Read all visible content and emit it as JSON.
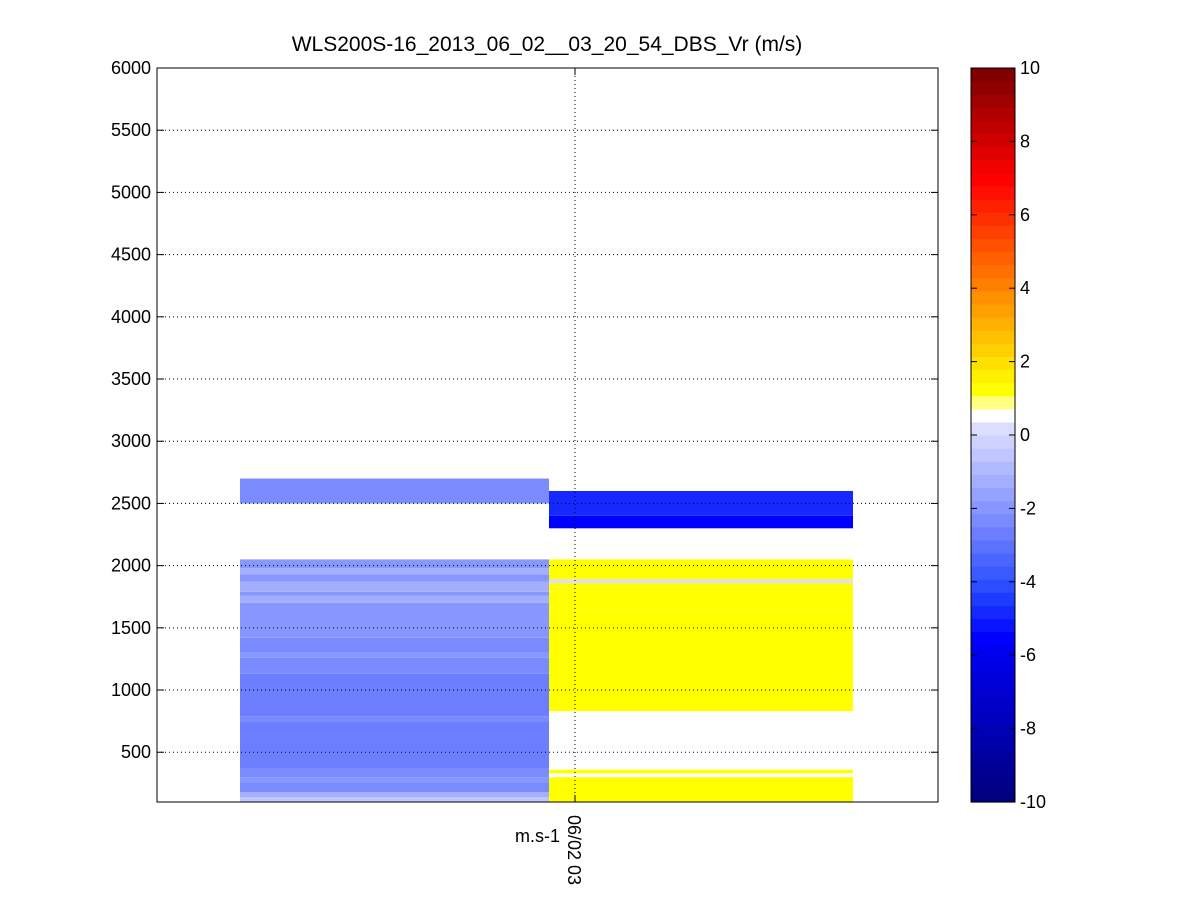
{
  "chart_data": {
    "type": "heatmap",
    "title": "WLS200S-16_2013_06_02__03_20_54_DBS_Vr (m/s)",
    "ylim": [
      100,
      6000
    ],
    "yticks": [
      500,
      1000,
      1500,
      2000,
      2500,
      3000,
      3500,
      4000,
      4500,
      5000,
      5500,
      6000
    ],
    "grid": true,
    "xtick_label": "06/02 03",
    "x_extra_label": "m.s-1",
    "columns": [
      {
        "index": 0,
        "cells": [
          {
            "y0": 100,
            "y1": 140,
            "value": -0.6
          },
          {
            "y0": 140,
            "y1": 180,
            "value": -1.2
          },
          {
            "y0": 180,
            "y1": 260,
            "value": -2.2
          },
          {
            "y0": 260,
            "y1": 300,
            "value": -1.8
          },
          {
            "y0": 300,
            "y1": 370,
            "value": -2.2
          },
          {
            "y0": 370,
            "y1": 750,
            "value": -2.6
          },
          {
            "y0": 750,
            "y1": 790,
            "value": -2.2
          },
          {
            "y0": 790,
            "y1": 1130,
            "value": -2.6
          },
          {
            "y0": 1130,
            "y1": 1260,
            "value": -2.2
          },
          {
            "y0": 1260,
            "y1": 1300,
            "value": -1.8
          },
          {
            "y0": 1300,
            "y1": 1420,
            "value": -2.2
          },
          {
            "y0": 1420,
            "y1": 1700,
            "value": -1.8
          },
          {
            "y0": 1700,
            "y1": 1760,
            "value": -1.4
          },
          {
            "y0": 1760,
            "y1": 1790,
            "value": -1.8
          },
          {
            "y0": 1790,
            "y1": 1870,
            "value": -1.4
          },
          {
            "y0": 1870,
            "y1": 1930,
            "value": -1.8
          },
          {
            "y0": 1930,
            "y1": 1980,
            "value": -1.4
          },
          {
            "y0": 1980,
            "y1": 2050,
            "value": -1.8
          },
          {
            "y0": 2500,
            "y1": 2700,
            "value": -2.2
          }
        ]
      },
      {
        "index": 1,
        "cells": [
          {
            "y0": 100,
            "y1": 300,
            "value": 1.2
          },
          {
            "y0": 300,
            "y1": 330,
            "value": 0.6
          },
          {
            "y0": 330,
            "y1": 360,
            "value": 1.2
          },
          {
            "y0": 360,
            "y1": 830,
            "value": 0.6
          },
          {
            "y0": 830,
            "y1": 1630,
            "value": 1.2
          },
          {
            "y0": 1630,
            "y1": 1680,
            "value": 1.4
          },
          {
            "y0": 1680,
            "y1": 1720,
            "value": 1.2
          },
          {
            "y0": 1720,
            "y1": 1760,
            "value": 1.4
          },
          {
            "y0": 1760,
            "y1": 1790,
            "value": 1.2
          },
          {
            "y0": 1790,
            "y1": 1830,
            "value": 1.4
          },
          {
            "y0": 1830,
            "y1": 1860,
            "value": 1.2
          },
          {
            "y0": 1860,
            "y1": 1890,
            "value": 0.3
          },
          {
            "y0": 1890,
            "y1": 2050,
            "value": 1.2
          },
          {
            "y0": 2300,
            "y1": 2400,
            "value": -5.6
          },
          {
            "y0": 2400,
            "y1": 2600,
            "value": -4.8
          }
        ]
      }
    ],
    "colorbar": {
      "range": [
        -10,
        10
      ],
      "ticks": [
        -10,
        -8,
        -6,
        -4,
        -2,
        0,
        2,
        4,
        6,
        8,
        10
      ],
      "colors": [
        "#000080",
        "#00008b",
        "#000095",
        "#00009f",
        "#0000aa",
        "#0000b4",
        "#0000be",
        "#0000c8",
        "#0000d2",
        "#0000dc",
        "#0000e6",
        "#0000f0",
        "#0000ff",
        "#0a14ff",
        "#1428ff",
        "#1e3cff",
        "#2b4cff",
        "#3a5aff",
        "#4b66ff",
        "#5c72ff",
        "#6c7eff",
        "#7a8aff",
        "#8896ff",
        "#96a2ff",
        "#a4aeff",
        "#b2baff",
        "#c0c6ff",
        "#ced2ff",
        "#dcdeff",
        "#ffffff",
        "#ffff80",
        "#ffff00",
        "#fff000",
        "#ffe000",
        "#ffd000",
        "#ffc000",
        "#ffb000",
        "#ffa000",
        "#ff9000",
        "#ff8000",
        "#ff7000",
        "#ff6000",
        "#ff5000",
        "#ff4000",
        "#ff3000",
        "#ff2000",
        "#ff1000",
        "#ff0000",
        "#f00000",
        "#e00000",
        "#d00000",
        "#c00000",
        "#b00000",
        "#a00000",
        "#900000",
        "#800000"
      ]
    }
  }
}
